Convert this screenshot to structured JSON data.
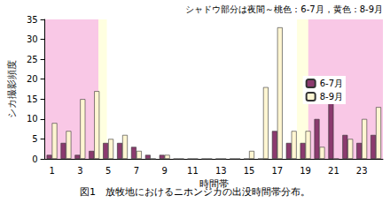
{
  "chart_data": {
    "type": "bar",
    "title": "図1　放牧地におけるニホンジカの出没時間帯分布。",
    "annotation": "シャドウ部分は夜間～桃色：6-7月，黄色：8-9月",
    "x_label": "時間帯",
    "y_label": "シカ撮影頻度",
    "categories": [
      "1",
      null,
      "3",
      null,
      "5",
      null,
      "7",
      null,
      "9",
      null,
      "11",
      null,
      "13",
      null,
      "15",
      null,
      "17",
      null,
      "19",
      null,
      "21",
      null,
      "23",
      null
    ],
    "series": [
      {
        "name": "6-7月",
        "color": "#8b3a6e",
        "values": [
          1,
          4,
          1,
          2,
          4,
          4,
          3,
          1,
          1,
          0,
          0,
          0,
          0,
          0,
          0,
          0,
          7,
          4,
          4,
          10,
          15,
          6,
          4,
          6
        ]
      },
      {
        "name": "8-9月",
        "color": "#fff6d2",
        "values": [
          9,
          7,
          15,
          17,
          5,
          6,
          2,
          0,
          1,
          0,
          0,
          0,
          0,
          0,
          2,
          18,
          33,
          7,
          7,
          3,
          0,
          5,
          10,
          13
        ]
      }
    ],
    "shaded_regions": [
      {
        "from": 0.5,
        "to": 4.9,
        "color": "#ffffe0"
      },
      {
        "from": 18.4,
        "to": 24.5,
        "color": "#ffffe0"
      },
      {
        "from": 0.5,
        "to": 4.3,
        "color": "#f9c8e6"
      },
      {
        "from": 19.2,
        "to": 24.5,
        "color": "#f9c8e6"
      }
    ],
    "ylim": [
      0,
      35
    ],
    "yticks": [
      0,
      5,
      10,
      15,
      20,
      25,
      30,
      35
    ],
    "grid": false,
    "legend": "upper right"
  }
}
